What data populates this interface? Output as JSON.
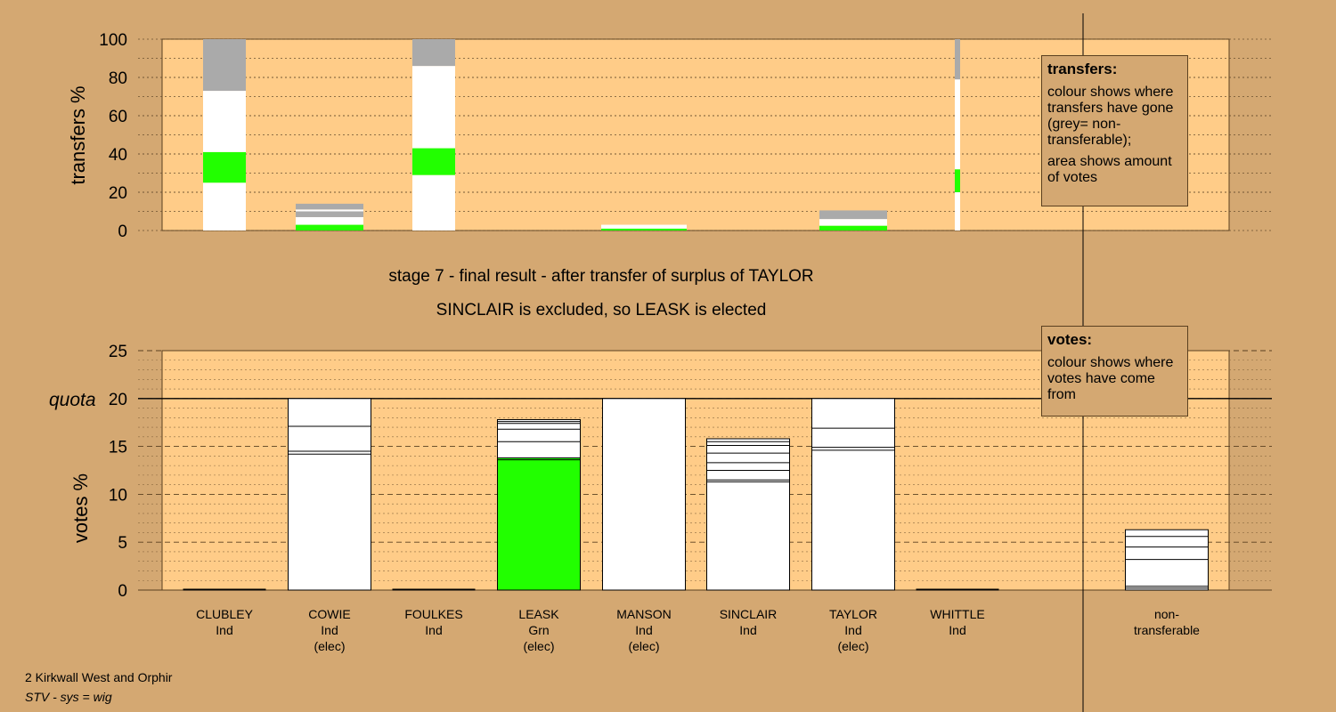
{
  "titles": {
    "line1": "stage 7 - final result - after transfer of surplus of TAYLOR",
    "line2": "SINCLAIR is excluded, so LEASK is elected"
  },
  "transfers_box": {
    "title": "transfers:",
    "text1": "colour shows where transfers have gone (grey= non-transferable);",
    "text2": "area shows amount of votes"
  },
  "votes_box": {
    "title": "votes:",
    "text1": "colour shows where votes have come from"
  },
  "footer": {
    "line1": "2 Kirkwall West and Orphir",
    "line2": "STV - sys = wig"
  },
  "colors": {
    "background": "#d4a872",
    "plot": "#ffcc88",
    "green": "#22ff00",
    "white": "#ffffff",
    "grey": "#aaaaaa"
  },
  "chart_data": [
    {
      "type": "bar",
      "name": "transfers",
      "ylabel": "transfers %",
      "ylim": [
        0,
        100
      ],
      "yticks": [
        0,
        20,
        40,
        60,
        80,
        100
      ],
      "stacked_bars": [
        {
          "x": "CLUBLEY",
          "segments": [
            {
              "from": 0,
              "to": 25,
              "color": "white"
            },
            {
              "from": 25,
              "to": 41,
              "color": "green"
            },
            {
              "from": 41,
              "to": 73,
              "color": "white"
            },
            {
              "from": 73,
              "to": 100,
              "color": "grey"
            }
          ]
        },
        {
          "x": "COWIE",
          "segments": [
            {
              "from": 0,
              "to": 3,
              "color": "green"
            },
            {
              "from": 3,
              "to": 7,
              "color": "white"
            },
            {
              "from": 7,
              "to": 10,
              "color": "grey"
            },
            {
              "from": 10,
              "to": 11,
              "color": "white"
            },
            {
              "from": 11,
              "to": 14,
              "color": "grey"
            }
          ]
        },
        {
          "x": "FOULKES",
          "segments": [
            {
              "from": 0,
              "to": 29,
              "color": "white"
            },
            {
              "from": 29,
              "to": 43,
              "color": "green"
            },
            {
              "from": 43,
              "to": 86,
              "color": "white"
            },
            {
              "from": 86,
              "to": 100,
              "color": "grey"
            }
          ]
        },
        {
          "x": "MANSON",
          "segments": [
            {
              "from": 0,
              "to": 1,
              "color": "green"
            },
            {
              "from": 1,
              "to": 3,
              "color": "white"
            }
          ]
        },
        {
          "x": "TAYLOR",
          "segments": [
            {
              "from": 0,
              "to": 2.5,
              "color": "green"
            },
            {
              "from": 2.5,
              "to": 6,
              "color": "white"
            },
            {
              "from": 6,
              "to": 10.5,
              "color": "grey"
            }
          ]
        },
        {
          "x": "WHITTLE",
          "segments": [
            {
              "from": 0,
              "to": 20,
              "color": "white"
            },
            {
              "from": 20,
              "to": 32,
              "color": "green"
            },
            {
              "from": 32,
              "to": 79,
              "color": "white"
            },
            {
              "from": 79,
              "to": 100,
              "color": "grey"
            }
          ]
        }
      ]
    },
    {
      "type": "bar",
      "name": "votes",
      "ylabel": "votes %",
      "ylim": [
        0,
        25
      ],
      "yticks": [
        0,
        5,
        10,
        15,
        20,
        25
      ],
      "quota": 20,
      "quota_label": "quota",
      "candidates": [
        {
          "name": "CLUBLEY",
          "party": "Ind",
          "status": "",
          "value": 0,
          "color": "white",
          "lines": []
        },
        {
          "name": "COWIE",
          "party": "Ind",
          "status": "(elec)",
          "value": 20,
          "color": "white",
          "lines": [
            14.2,
            14.5,
            17.1
          ]
        },
        {
          "name": "FOULKES",
          "party": "Ind",
          "status": "",
          "value": 0,
          "color": "white",
          "lines": []
        },
        {
          "name": "LEASK",
          "party": "Grn",
          "status": "(elec)",
          "value": 17.8,
          "color": "green",
          "base_green": 13.8,
          "lines": [
            13.6,
            13.8,
            15.5,
            16.8,
            17.4,
            17.6
          ]
        },
        {
          "name": "MANSON",
          "party": "Ind",
          "status": "(elec)",
          "value": 20,
          "color": "white",
          "lines": []
        },
        {
          "name": "SINCLAIR",
          "party": "Ind",
          "status": "",
          "value": 15.8,
          "color": "white",
          "lines": [
            11.3,
            11.5,
            12.5,
            13.3,
            14.3,
            15.1,
            15.5
          ]
        },
        {
          "name": "TAYLOR",
          "party": "Ind",
          "status": "(elec)",
          "value": 20,
          "color": "white",
          "lines": [
            14.6,
            14.9,
            16.9
          ]
        },
        {
          "name": "WHITTLE",
          "party": "Ind",
          "status": "",
          "value": 0,
          "color": "white",
          "lines": []
        },
        {
          "name": "non-\ntransferable",
          "party": "",
          "status": "",
          "value": 6.3,
          "color": "white",
          "lines": [
            0.2,
            0.4,
            3.2,
            4.5,
            5.6
          ]
        }
      ]
    }
  ]
}
